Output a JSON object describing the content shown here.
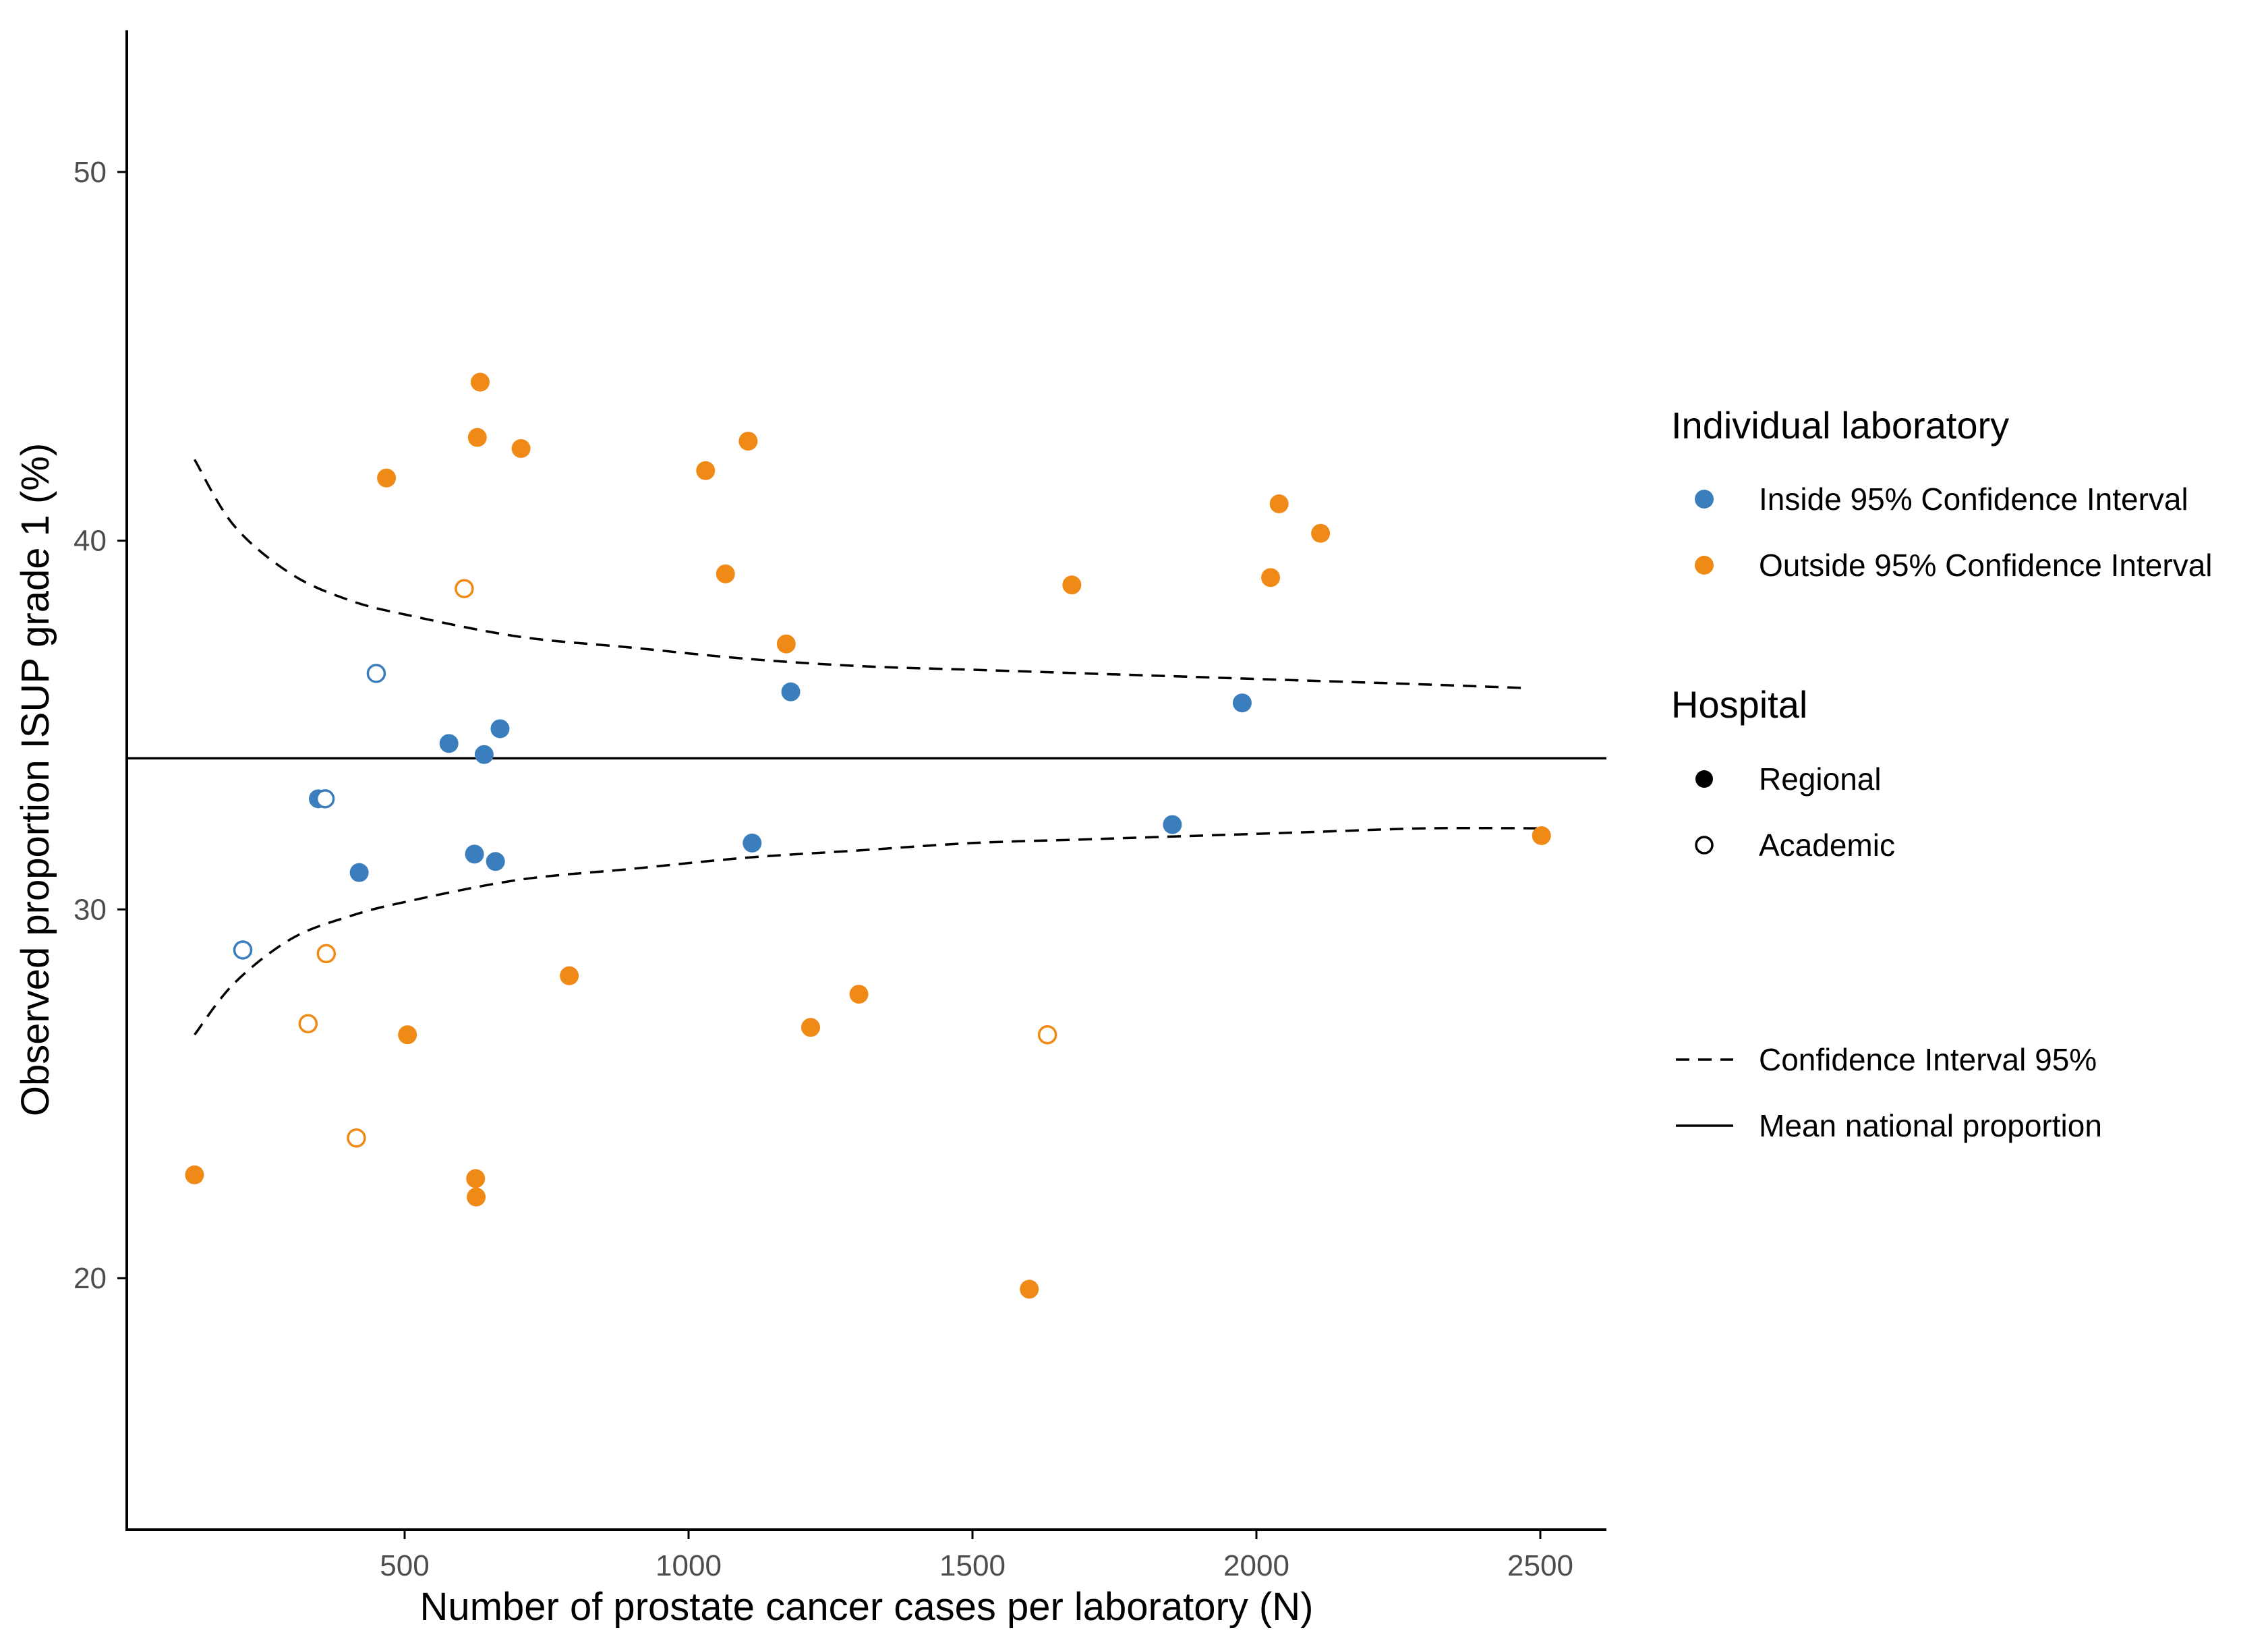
{
  "chart_data": {
    "type": "scatter",
    "title": "",
    "xlabel": "Number of prostate cancer cases per laboratory (N)",
    "ylabel": "Observed proportion ISUP grade 1 (%)",
    "xlim": [
      0,
      2600
    ],
    "ylim": [
      13,
      54
    ],
    "xticks": [
      500,
      1000,
      1500,
      2000,
      2500
    ],
    "yticks": [
      20,
      30,
      40,
      50
    ],
    "mean_line": 34.1,
    "ci_upper": [
      [
        130,
        42.2
      ],
      [
        200,
        40.4
      ],
      [
        300,
        39.1
      ],
      [
        400,
        38.4
      ],
      [
        500,
        38.0
      ],
      [
        700,
        37.4
      ],
      [
        900,
        37.1
      ],
      [
        1100,
        36.8
      ],
      [
        1300,
        36.6
      ],
      [
        1500,
        36.5
      ],
      [
        1700,
        36.4
      ],
      [
        1900,
        36.3
      ],
      [
        2100,
        36.2
      ],
      [
        2300,
        36.1
      ],
      [
        2480,
        36.0
      ]
    ],
    "ci_lower": [
      [
        130,
        26.6
      ],
      [
        200,
        28.0
      ],
      [
        300,
        29.2
      ],
      [
        400,
        29.8
      ],
      [
        500,
        30.2
      ],
      [
        700,
        30.8
      ],
      [
        900,
        31.1
      ],
      [
        1100,
        31.4
      ],
      [
        1300,
        31.6
      ],
      [
        1500,
        31.8
      ],
      [
        1700,
        31.9
      ],
      [
        1900,
        32.0
      ],
      [
        2100,
        32.1
      ],
      [
        2300,
        32.2
      ],
      [
        2500,
        32.2
      ]
    ],
    "series": [
      {
        "name": "Inside 95% Confidence Interval",
        "color": "#3a7ebd",
        "points": [
          {
            "x": 348,
            "y": 33.0,
            "hospital": "Regional"
          },
          {
            "x": 360,
            "y": 33.0,
            "hospital": "Academic"
          },
          {
            "x": 450,
            "y": 36.4,
            "hospital": "Academic"
          },
          {
            "x": 215,
            "y": 28.9,
            "hospital": "Academic"
          },
          {
            "x": 420,
            "y": 31.0,
            "hospital": "Regional"
          },
          {
            "x": 578,
            "y": 34.5,
            "hospital": "Regional"
          },
          {
            "x": 623,
            "y": 31.5,
            "hospital": "Regional"
          },
          {
            "x": 640,
            "y": 34.2,
            "hospital": "Regional"
          },
          {
            "x": 660,
            "y": 31.3,
            "hospital": "Regional"
          },
          {
            "x": 668,
            "y": 34.9,
            "hospital": "Regional"
          },
          {
            "x": 1112,
            "y": 31.8,
            "hospital": "Regional"
          },
          {
            "x": 1180,
            "y": 35.9,
            "hospital": "Regional"
          },
          {
            "x": 1852,
            "y": 32.3,
            "hospital": "Regional"
          },
          {
            "x": 1975,
            "y": 35.6,
            "hospital": "Regional"
          }
        ]
      },
      {
        "name": "Outside 95% Confidence Interval",
        "color": "#f08a16",
        "points": [
          {
            "x": 130,
            "y": 22.8,
            "hospital": "Regional"
          },
          {
            "x": 330,
            "y": 26.9,
            "hospital": "Academic"
          },
          {
            "x": 362,
            "y": 28.8,
            "hospital": "Academic"
          },
          {
            "x": 415,
            "y": 23.8,
            "hospital": "Academic"
          },
          {
            "x": 468,
            "y": 41.7,
            "hospital": "Regional"
          },
          {
            "x": 505,
            "y": 26.6,
            "hospital": "Regional"
          },
          {
            "x": 605,
            "y": 38.7,
            "hospital": "Academic"
          },
          {
            "x": 625,
            "y": 22.7,
            "hospital": "Regional"
          },
          {
            "x": 626,
            "y": 22.2,
            "hospital": "Regional"
          },
          {
            "x": 628,
            "y": 42.8,
            "hospital": "Regional"
          },
          {
            "x": 633,
            "y": 44.3,
            "hospital": "Regional"
          },
          {
            "x": 705,
            "y": 42.5,
            "hospital": "Regional"
          },
          {
            "x": 790,
            "y": 28.2,
            "hospital": "Regional"
          },
          {
            "x": 1030,
            "y": 41.9,
            "hospital": "Regional"
          },
          {
            "x": 1065,
            "y": 39.1,
            "hospital": "Regional"
          },
          {
            "x": 1105,
            "y": 42.7,
            "hospital": "Regional"
          },
          {
            "x": 1172,
            "y": 37.2,
            "hospital": "Regional"
          },
          {
            "x": 1215,
            "y": 26.8,
            "hospital": "Regional"
          },
          {
            "x": 1300,
            "y": 27.7,
            "hospital": "Regional"
          },
          {
            "x": 1600,
            "y": 19.7,
            "hospital": "Regional"
          },
          {
            "x": 1632,
            "y": 26.6,
            "hospital": "Academic"
          },
          {
            "x": 1675,
            "y": 38.8,
            "hospital": "Regional"
          },
          {
            "x": 2025,
            "y": 39.0,
            "hospital": "Regional"
          },
          {
            "x": 2040,
            "y": 41.0,
            "hospital": "Regional"
          },
          {
            "x": 2113,
            "y": 40.2,
            "hospital": "Regional"
          },
          {
            "x": 2502,
            "y": 32.0,
            "hospital": "Regional"
          }
        ]
      }
    ],
    "legend": {
      "color_title": "Individual laboratory",
      "color_items": [
        "Inside 95% Confidence Interval",
        "Outside 95% Confidence Interval"
      ],
      "shape_title": "Hospital",
      "shape_items": [
        "Regional",
        "Academic"
      ],
      "line_items": [
        "Confidence Interval 95%",
        "Mean national proportion"
      ],
      "placement": "right"
    }
  }
}
